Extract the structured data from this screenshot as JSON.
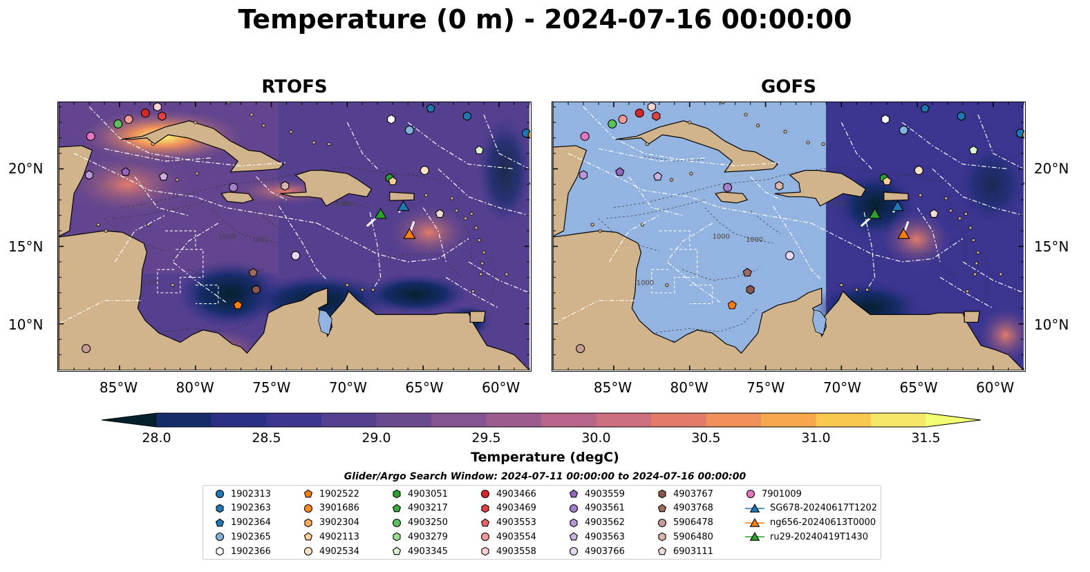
{
  "figure": {
    "title": "Temperature (0 m) - 2024-07-16 00:00:00",
    "panels": [
      {
        "title": "RTOFS"
      },
      {
        "title": "GOFS"
      }
    ],
    "lon_ticks": [
      "85°W",
      "80°W",
      "75°W",
      "70°W",
      "65°W",
      "60°W"
    ],
    "lat_ticks": [
      "20°N",
      "15°N",
      "10°N"
    ],
    "colorbar": {
      "label": "Temperature (degC)",
      "ticks": [
        "28.0",
        "28.5",
        "29.0",
        "29.5",
        "30.0",
        "30.5",
        "31.0",
        "31.5"
      ],
      "colors": [
        "#06202e",
        "#152c6a",
        "#2b2f86",
        "#3c3590",
        "#55408f",
        "#6a4a8e",
        "#835490",
        "#9b5d8e",
        "#b5668a",
        "#ce6f7f",
        "#e27c6a",
        "#f0905a",
        "#f8a84c",
        "#f9c84f",
        "#f5e868",
        "#f3ff72"
      ]
    },
    "search_window": "Glider/Argo Search Window: 2024-07-11 00:00:00 to 2024-07-16 00:00:00",
    "colors": {
      "land": "#d2b48c",
      "water_masked": "#93b3e0",
      "ocean_mid": "#5a4494"
    }
  },
  "legend": [
    {
      "label": "1902313",
      "marker": "circle",
      "color": "#1f77b4"
    },
    {
      "label": "1902363",
      "marker": "hexagon",
      "color": "#1f77b4"
    },
    {
      "label": "1902364",
      "marker": "pentagon",
      "color": "#1f77b4"
    },
    {
      "label": "1902365",
      "marker": "circle",
      "color": "#7fb3dc"
    },
    {
      "label": "1902366",
      "marker": "hexagon",
      "color": "#ffffff"
    },
    {
      "label": "1902522",
      "marker": "pentagon",
      "color": "#ff7f0e"
    },
    {
      "label": "3901686",
      "marker": "circle",
      "color": "#ff8c26"
    },
    {
      "label": "3902304",
      "marker": "hexagon",
      "color": "#ffad5c"
    },
    {
      "label": "4902113",
      "marker": "pentagon",
      "color": "#ffcf99"
    },
    {
      "label": "4902534",
      "marker": "circle",
      "color": "#ffe2c4"
    },
    {
      "label": "4903051",
      "marker": "hexagon",
      "color": "#2ca02c"
    },
    {
      "label": "4903217",
      "marker": "pentagon",
      "color": "#3aac3a"
    },
    {
      "label": "4903250",
      "marker": "circle",
      "color": "#5cc05c"
    },
    {
      "label": "4903279",
      "marker": "hexagon",
      "color": "#98df8a"
    },
    {
      "label": "4903345",
      "marker": "pentagon",
      "color": "#d9f5d0"
    },
    {
      "label": "4903466",
      "marker": "circle",
      "color": "#d62728"
    },
    {
      "label": "4903469",
      "marker": "hexagon",
      "color": "#e04345"
    },
    {
      "label": "4903553",
      "marker": "pentagon",
      "color": "#ea6466"
    },
    {
      "label": "4903554",
      "marker": "circle",
      "color": "#f49a98"
    },
    {
      "label": "4903558",
      "marker": "hexagon",
      "color": "#fdd3d2"
    },
    {
      "label": "4903559",
      "marker": "pentagon",
      "color": "#9467bd"
    },
    {
      "label": "4903561",
      "marker": "circle",
      "color": "#a47fcc"
    },
    {
      "label": "4903562",
      "marker": "hexagon",
      "color": "#b898d8"
    },
    {
      "label": "4903563",
      "marker": "pentagon",
      "color": "#ccb2e3"
    },
    {
      "label": "4903766",
      "marker": "circle",
      "color": "#e6d9f3"
    },
    {
      "label": "4903767",
      "marker": "hexagon",
      "color": "#8c564b"
    },
    {
      "label": "4903768",
      "marker": "pentagon",
      "color": "#a06b5e"
    },
    {
      "label": "5906478",
      "marker": "circle",
      "color": "#c49c94"
    },
    {
      "label": "5906480",
      "marker": "hexagon",
      "color": "#dab6ae"
    },
    {
      "label": "6903111",
      "marker": "pentagon",
      "color": "#f2dcd7"
    },
    {
      "label": "7901009",
      "marker": "circle",
      "color": "#e377c2"
    },
    {
      "label": "SG678-20240617T1202",
      "marker": "triangle",
      "color": "#1f77b4"
    },
    {
      "label": "ng656-20240613T0000",
      "marker": "triangle",
      "color": "#ff7f0e"
    },
    {
      "label": "ru29-20240419T1430",
      "marker": "triangle",
      "color": "#2ca02c"
    }
  ],
  "argo_positions": [
    {
      "id": "7901009",
      "lon": -86.9,
      "lat": 22.1
    },
    {
      "id": "4903250",
      "lon": -85.1,
      "lat": 22.9
    },
    {
      "id": "4903554",
      "lon": -84.4,
      "lat": 23.2
    },
    {
      "id": "4903466",
      "lon": -83.3,
      "lat": 23.6
    },
    {
      "id": "4903558",
      "lon": -82.5,
      "lat": 24.0
    },
    {
      "id": "4903469",
      "lon": -82.2,
      "lat": 23.4
    },
    {
      "id": "1902366",
      "lon": -67.1,
      "lat": 23.2
    },
    {
      "id": "1902364",
      "lon": -64.5,
      "lat": 23.9
    },
    {
      "id": "1902365",
      "lon": -65.9,
      "lat": 22.5
    },
    {
      "id": "1902363",
      "lon": -62.1,
      "lat": 23.4
    },
    {
      "id": "1902313",
      "lon": -58.2,
      "lat": 22.3
    },
    {
      "id": "3901686",
      "lon": -57.8,
      "lat": 22.2
    },
    {
      "id": "4903345",
      "lon": -61.3,
      "lat": 21.2
    },
    {
      "id": "4903217",
      "lon": -57.7,
      "lat": 19.0
    },
    {
      "id": "4903051",
      "lon": -67.2,
      "lat": 19.4
    },
    {
      "id": "4902113",
      "lon": -67.0,
      "lat": 19.2
    },
    {
      "id": "4902534",
      "lon": -64.9,
      "lat": 19.9
    },
    {
      "id": "4903562",
      "lon": -87.0,
      "lat": 19.6
    },
    {
      "id": "4903559",
      "lon": -84.6,
      "lat": 19.8
    },
    {
      "id": "4903563",
      "lon": -82.1,
      "lat": 19.5
    },
    {
      "id": "4903561",
      "lon": -77.5,
      "lat": 18.8
    },
    {
      "id": "5906480",
      "lon": -74.1,
      "lat": 18.9
    },
    {
      "id": "6903111",
      "lon": -63.9,
      "lat": 17.1
    },
    {
      "id": "4903766",
      "lon": -73.4,
      "lat": 14.4
    },
    {
      "id": "4903768",
      "lon": -76.2,
      "lat": 13.3
    },
    {
      "id": "4903767",
      "lon": -76.0,
      "lat": 12.2
    },
    {
      "id": "1902522",
      "lon": -77.2,
      "lat": 11.2
    },
    {
      "id": "5906478",
      "lon": -87.2,
      "lat": 8.4
    }
  ],
  "glider_positions": [
    {
      "id": "ru29-20240419T1430",
      "lon": -67.8,
      "lat": 17.1
    },
    {
      "id": "SG678-20240617T1202",
      "lon": -66.3,
      "lat": 17.6
    },
    {
      "id": "ng656-20240613T0000",
      "lon": -65.9,
      "lat": 15.8
    }
  ]
}
